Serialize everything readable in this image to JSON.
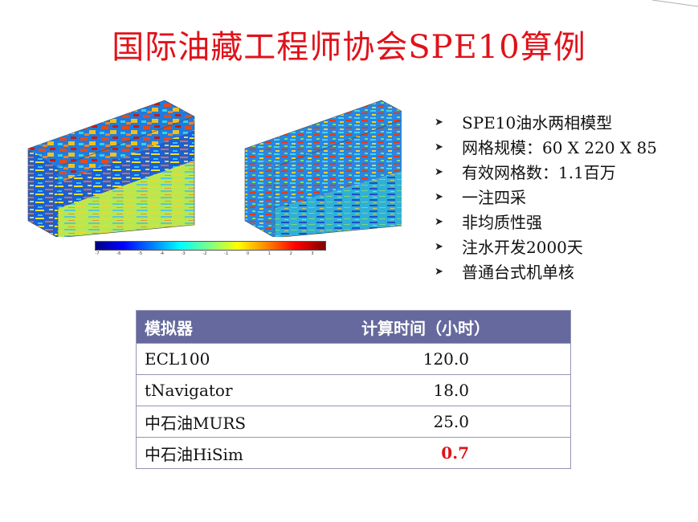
{
  "title": "国际油藏工程师协会SPE10算例",
  "colorbar": {
    "ticks": [
      "-7",
      "-6",
      "-5",
      "-4",
      "-3",
      "-2",
      "-1",
      "0",
      "1",
      "2",
      "3"
    ]
  },
  "bullets": [
    {
      "icon": "arrowhead-icon",
      "text": "SPE10油水两相模型"
    },
    {
      "icon": "arrowhead-icon",
      "text": "网格规模：60 X 220 X 85"
    },
    {
      "icon": "arrowhead-icon",
      "text": "有效网格数：1.1百万"
    },
    {
      "icon": "arrowhead-icon",
      "text": "一注四采"
    },
    {
      "icon": "arrowhead-icon",
      "text": "非均质性强"
    },
    {
      "icon": "arrowhead-icon",
      "text": "注水开发2000天"
    },
    {
      "icon": "arrowhead-icon",
      "text": "普通台式机单核"
    }
  ],
  "table": {
    "headers": [
      "模拟器",
      "计算时间（小时）"
    ],
    "rows": [
      {
        "name": "ECL100",
        "time": "120.0"
      },
      {
        "name": "tNavigator",
        "time": "18.0"
      },
      {
        "name": "中石油MURS",
        "time": "25.0"
      },
      {
        "name": "中石油HiSim",
        "time": "0.7"
      }
    ]
  },
  "colors": {
    "title": "#e0121a",
    "table_header": "#65699d",
    "highlight": "#e0121a"
  }
}
